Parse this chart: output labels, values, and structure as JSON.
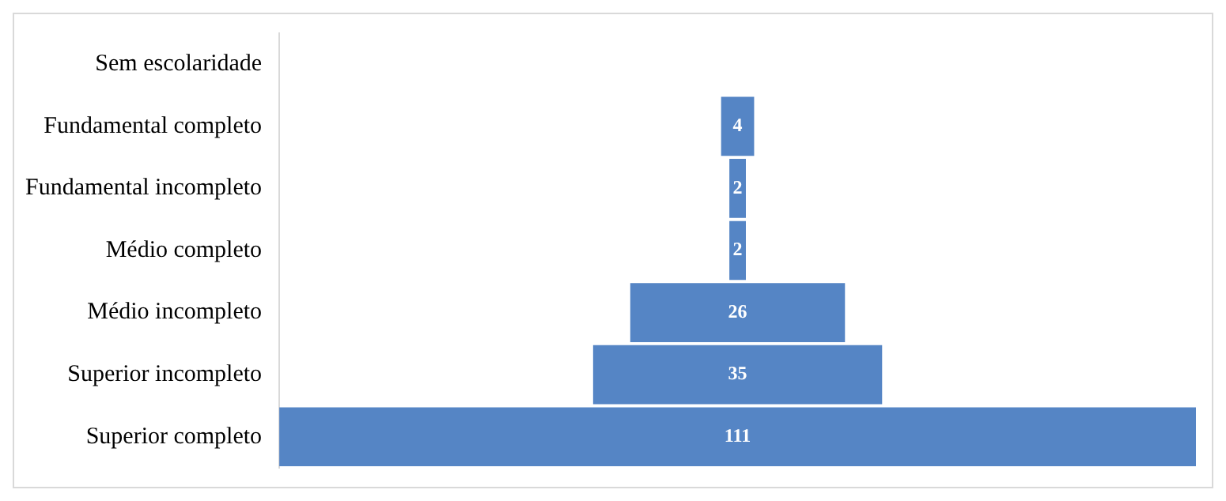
{
  "chart_data": {
    "type": "other",
    "categories": [
      "Sem escolaridade",
      "Fundamental completo",
      "Fundamental incompleto",
      "Médio completo",
      "Médio incompleto",
      "Superior incompleto",
      "Superior completo"
    ],
    "values": [
      null,
      4,
      2,
      2,
      26,
      35,
      111
    ],
    "color": "#5585c5",
    "data_labels": true
  }
}
